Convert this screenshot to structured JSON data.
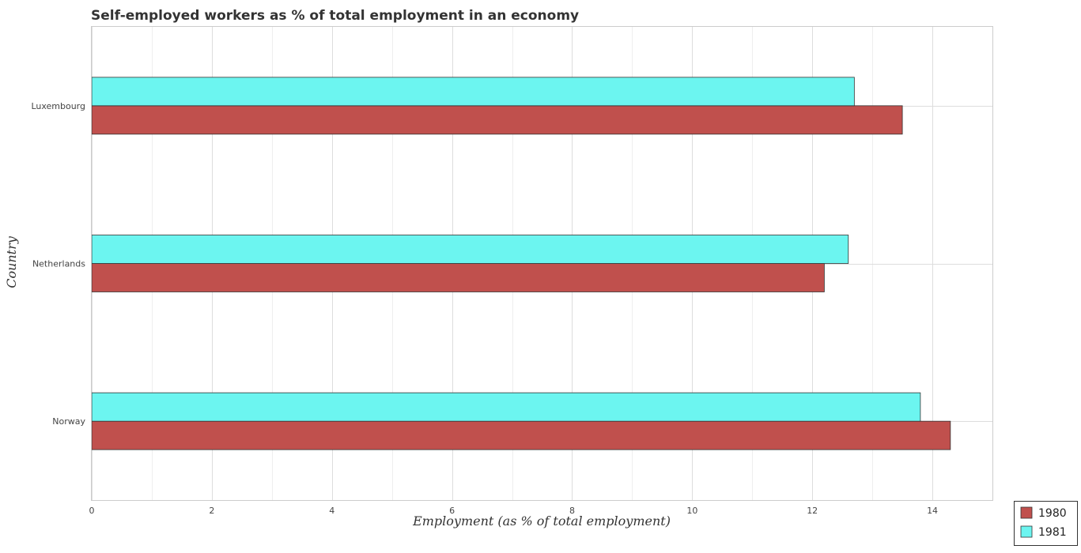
{
  "chart_data": {
    "type": "bar",
    "orientation": "horizontal",
    "title": "Self-employed workers as % of total employment in an economy",
    "xlabel": "Employment (as % of total employment)",
    "ylabel": "Country",
    "categories": [
      "Luxembourg",
      "Netherlands",
      "Norway"
    ],
    "series": [
      {
        "name": "1980",
        "color": "#c0504d",
        "values": [
          13.5,
          12.2,
          14.3
        ]
      },
      {
        "name": "1981",
        "color": "#6cf5f0",
        "values": [
          12.7,
          12.6,
          13.8
        ]
      }
    ],
    "xlim": [
      0,
      15
    ],
    "xticks": [
      "0",
      "2",
      "4",
      "6",
      "8",
      "10",
      "12",
      "14"
    ],
    "grid": true,
    "legend_position": "bottom-right"
  }
}
